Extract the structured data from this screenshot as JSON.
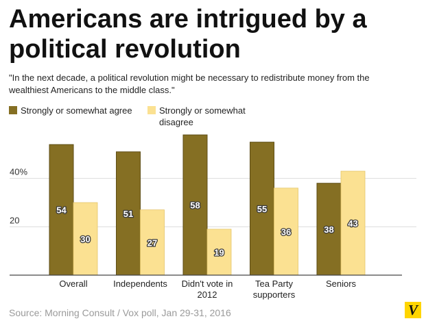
{
  "chart_data": {
    "type": "bar",
    "title": "Americans are intrigued by a political revolution",
    "subtitle": "\"In the next decade, a political revolution might be necessary to redistribute money from the wealthiest Americans to the middle class.\"",
    "categories": [
      "Overall",
      "Independents",
      "Didn't vote in 2012",
      "Tea Party supporters",
      "Seniors"
    ],
    "series": [
      {
        "name": "Strongly or somewhat agree",
        "color": "#856f23",
        "values": [
          54,
          51,
          58,
          55,
          38
        ]
      },
      {
        "name": "Strongly or somewhat disagree",
        "color": "#fbe192",
        "values": [
          30,
          27,
          19,
          36,
          43
        ]
      }
    ],
    "ylim": [
      0,
      60
    ],
    "yticks": [
      {
        "value": 20,
        "label": "20"
      },
      {
        "value": 40,
        "label": "40%"
      }
    ],
    "grid": true,
    "legend": "top-left",
    "source": "Source: Morning Consult / Vox poll, Jan 29-31, 2016"
  },
  "logo": {
    "text": "V"
  }
}
